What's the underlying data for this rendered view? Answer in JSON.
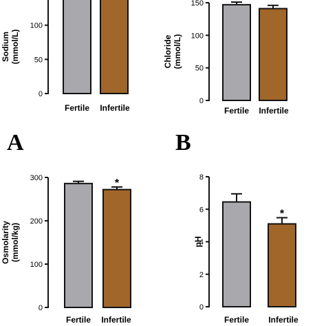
{
  "figure": {
    "panel_labels": [
      "A",
      "B"
    ]
  },
  "colors": {
    "fertile": "#a9a9ad",
    "infertile": "#a1662a",
    "axis": "#111111"
  },
  "chart_data": [
    {
      "id": "sodium",
      "type": "bar",
      "categories": [
        "Fertile",
        "Infertile"
      ],
      "ylabel": [
        "Sodium",
        "(mmol/L)"
      ],
      "ylim": [
        0,
        150
      ],
      "yticks": [
        0,
        50,
        100
      ],
      "values": [
        147,
        140
      ],
      "errors": [
        4,
        4
      ],
      "annotations": [
        "",
        ""
      ],
      "colors": [
        "#a9a9ad",
        "#a1662a"
      ]
    },
    {
      "id": "chloride",
      "type": "bar",
      "categories": [
        "Fertile",
        "Infertile"
      ],
      "ylabel": [
        "Chloride",
        "(mmol/L)"
      ],
      "ylim": [
        0,
        150
      ],
      "yticks": [
        0,
        50,
        100,
        150
      ],
      "values": [
        147,
        141
      ],
      "errors": [
        4,
        5
      ],
      "annotations": [
        "",
        ""
      ],
      "colors": [
        "#a9a9ad",
        "#a1662a"
      ]
    },
    {
      "id": "osmolarity",
      "type": "bar",
      "categories": [
        "Fertile",
        "Infertile"
      ],
      "ylabel": [
        "Osmolarity",
        "(mmol/kg)"
      ],
      "ylim": [
        0,
        300
      ],
      "yticks": [
        0,
        100,
        200,
        300
      ],
      "values": [
        286,
        272
      ],
      "errors": [
        5,
        6
      ],
      "annotations": [
        "",
        "*"
      ],
      "colors": [
        "#a9a9ad",
        "#a1662a"
      ]
    },
    {
      "id": "ph",
      "type": "bar",
      "categories": [
        "Fertile",
        "Infertile"
      ],
      "ylabel": [
        "pH"
      ],
      "ylim": [
        0,
        8
      ],
      "yticks": [
        0,
        2,
        4,
        6,
        8
      ],
      "values": [
        6.45,
        5.1
      ],
      "errors": [
        0.5,
        0.38
      ],
      "annotations": [
        "",
        "*"
      ],
      "colors": [
        "#a9a9ad",
        "#a1662a"
      ]
    }
  ]
}
